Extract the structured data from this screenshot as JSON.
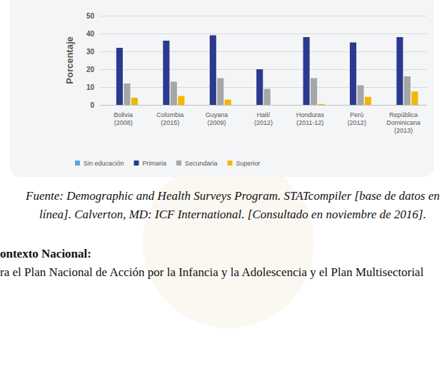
{
  "chart_data": {
    "type": "bar",
    "categories": [
      "Bolivia (2008)",
      "Colombia (2015)",
      "Guyana (2009)",
      "Haití (2012)",
      "Honduras (2011-12)",
      "Perú (2012)",
      "República Dominicana (2013)"
    ],
    "series": [
      {
        "name": "Sin educación",
        "color": "#5aa6e0",
        "values": [
          0,
          0,
          0,
          0,
          0,
          0,
          0
        ]
      },
      {
        "name": "Primaria",
        "color": "#2b3a8e",
        "values": [
          32,
          36,
          39,
          20,
          38,
          35,
          38
        ]
      },
      {
        "name": "Secundaria",
        "color": "#a6a6a6",
        "values": [
          12,
          13,
          15,
          9,
          15,
          11,
          16
        ]
      },
      {
        "name": "Superior",
        "color": "#f2b705",
        "values": [
          4,
          5,
          3,
          0,
          0.5,
          4.5,
          7.5
        ]
      }
    ],
    "ylabel": "Porcentaje",
    "ylim": [
      0,
      50
    ],
    "yticks": [
      0,
      10,
      20,
      30,
      40,
      50
    ],
    "grid": true,
    "legend": "bottom"
  },
  "caption": "Fuente: Demographic and Health Surveys Program. STATcompiler [base de datos en línea]. Calverton, MD: ICF International. [Consultado en noviembre de 2016].",
  "heading": "ontexto Nacional:",
  "body": "ra el Plan Nacional de Acción por la Infancia y la Adolescencia y el Plan Multisectorial"
}
